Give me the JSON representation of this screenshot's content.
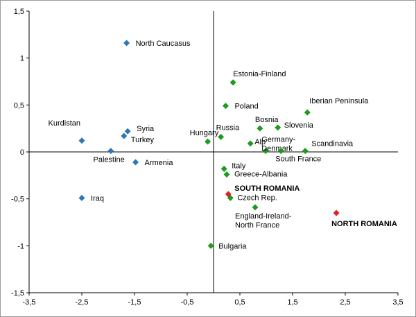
{
  "chart_data": {
    "type": "scatter",
    "title": "",
    "xlabel": "",
    "ylabel": "",
    "xlim": [
      -3.5,
      3.5
    ],
    "ylim": [
      -1.5,
      1.5
    ],
    "x_ticks": [
      "-3,5",
      "-2,5",
      "-1,5",
      "-0,5",
      "0,5",
      "1,5",
      "2,5",
      "3,5"
    ],
    "x_tick_values": [
      -3.5,
      -2.5,
      -1.5,
      -0.5,
      0.5,
      1.5,
      2.5,
      3.5
    ],
    "y_ticks": [
      "1,5",
      "1",
      "0,5",
      "0",
      "-0,5",
      "-1",
      "-1,5"
    ],
    "y_tick_values": [
      1.5,
      1,
      0.5,
      0,
      -0.5,
      -1,
      -1.5
    ],
    "grid": false,
    "marker": "diamond",
    "colors": {
      "blue": "#2e75b6",
      "green": "#1e9a1e",
      "red": "#e0201f"
    },
    "points": [
      {
        "label": "North Caucasus",
        "x": -1.65,
        "y": 1.16,
        "color": "blue"
      },
      {
        "label": "Syria",
        "x": -1.63,
        "y": 0.22,
        "color": "blue"
      },
      {
        "label": "Turkey",
        "x": -1.7,
        "y": 0.17,
        "color": "blue"
      },
      {
        "label": "Kurdistan",
        "x": -2.5,
        "y": 0.12,
        "color": "blue"
      },
      {
        "label": "Palestine",
        "x": -1.95,
        "y": 0.01,
        "color": "blue"
      },
      {
        "label": "Armenia",
        "x": -1.48,
        "y": -0.11,
        "color": "blue"
      },
      {
        "label": "Iraq",
        "x": -2.5,
        "y": -0.49,
        "color": "blue"
      },
      {
        "label": "Estonia-Finland",
        "x": 0.37,
        "y": 0.74,
        "color": "green"
      },
      {
        "label": "Poland",
        "x": 0.23,
        "y": 0.49,
        "color": "green"
      },
      {
        "label": "Iberian Peninsula",
        "x": 1.78,
        "y": 0.42,
        "color": "green"
      },
      {
        "label": "Bosnia",
        "x": 0.88,
        "y": 0.25,
        "color": "green"
      },
      {
        "label": "Slovenia",
        "x": 1.22,
        "y": 0.26,
        "color": "green"
      },
      {
        "label": "Russia",
        "x": 0.14,
        "y": 0.16,
        "color": "green"
      },
      {
        "label": "Hungary",
        "x": -0.11,
        "y": 0.11,
        "color": "green"
      },
      {
        "label": "Alp",
        "x": 0.7,
        "y": 0.09,
        "color": "green"
      },
      {
        "label": "Germany-Denmark",
        "x": 0.99,
        "y": 0.01,
        "color": "green"
      },
      {
        "label": "South France",
        "x": 1.28,
        "y": 0.01,
        "color": "green"
      },
      {
        "label": "Scandinavia",
        "x": 1.74,
        "y": 0.01,
        "color": "green"
      },
      {
        "label": "Italy",
        "x": 0.2,
        "y": -0.18,
        "color": "green"
      },
      {
        "label": "Greece-Albania",
        "x": 0.25,
        "y": -0.24,
        "color": "green"
      },
      {
        "label": "Czech Rep.",
        "x": 0.32,
        "y": -0.49,
        "color": "green"
      },
      {
        "label": "England-Ireland-North France",
        "x": 0.79,
        "y": -0.59,
        "color": "green"
      },
      {
        "label": "Bulgaria",
        "x": -0.05,
        "y": -1.0,
        "color": "green"
      },
      {
        "label": "SOUTH ROMANIA",
        "x": 0.28,
        "y": -0.45,
        "color": "red"
      },
      {
        "label": "NORTH ROMANIA",
        "x": 2.33,
        "y": -0.65,
        "color": "red"
      }
    ]
  }
}
